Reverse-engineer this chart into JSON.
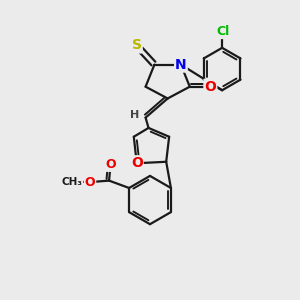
{
  "background_color": "#ebebeb",
  "bond_color": "#1a1a1a",
  "bond_width": 1.6,
  "atom_colors": {
    "S": "#b8b800",
    "N": "#0000ee",
    "O": "#ee0000",
    "Cl": "#00bb00",
    "C": "#1a1a1a",
    "H": "#444444"
  },
  "figsize": [
    3.0,
    3.0
  ],
  "dpi": 100
}
